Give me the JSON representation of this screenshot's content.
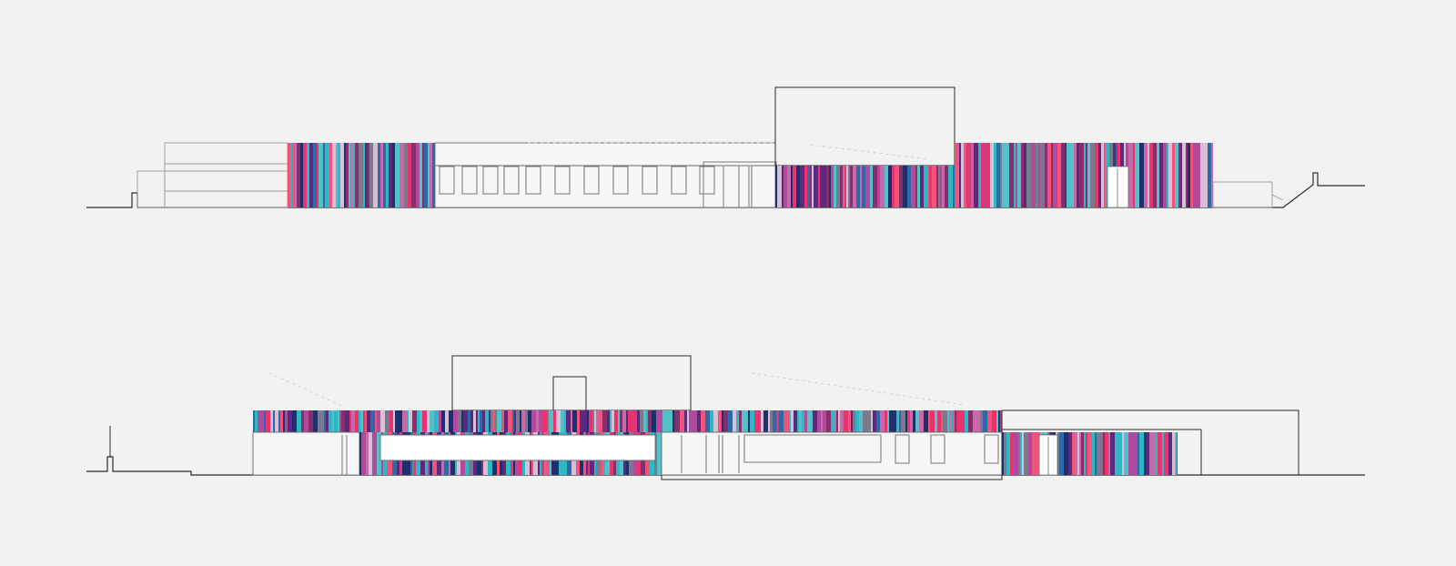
{
  "drawing": {
    "type": "architectural-elevations",
    "background": "#f2f2f2",
    "line_color": "#2b2b2b",
    "light_line_color": "#9a9a9a",
    "facade_palette": [
      "#e8336e",
      "#5b2a7e",
      "#2fb8c4",
      "#d7bfd6",
      "#8a2d6b",
      "#2e6aa8",
      "#f0547a",
      "#7a7a8c",
      "#b04a9c",
      "#1e2f6e",
      "#c86aa8",
      "#54c0c8"
    ]
  },
  "elevations": [
    {
      "name": "elevation-upper"
    },
    {
      "name": "elevation-lower"
    }
  ]
}
